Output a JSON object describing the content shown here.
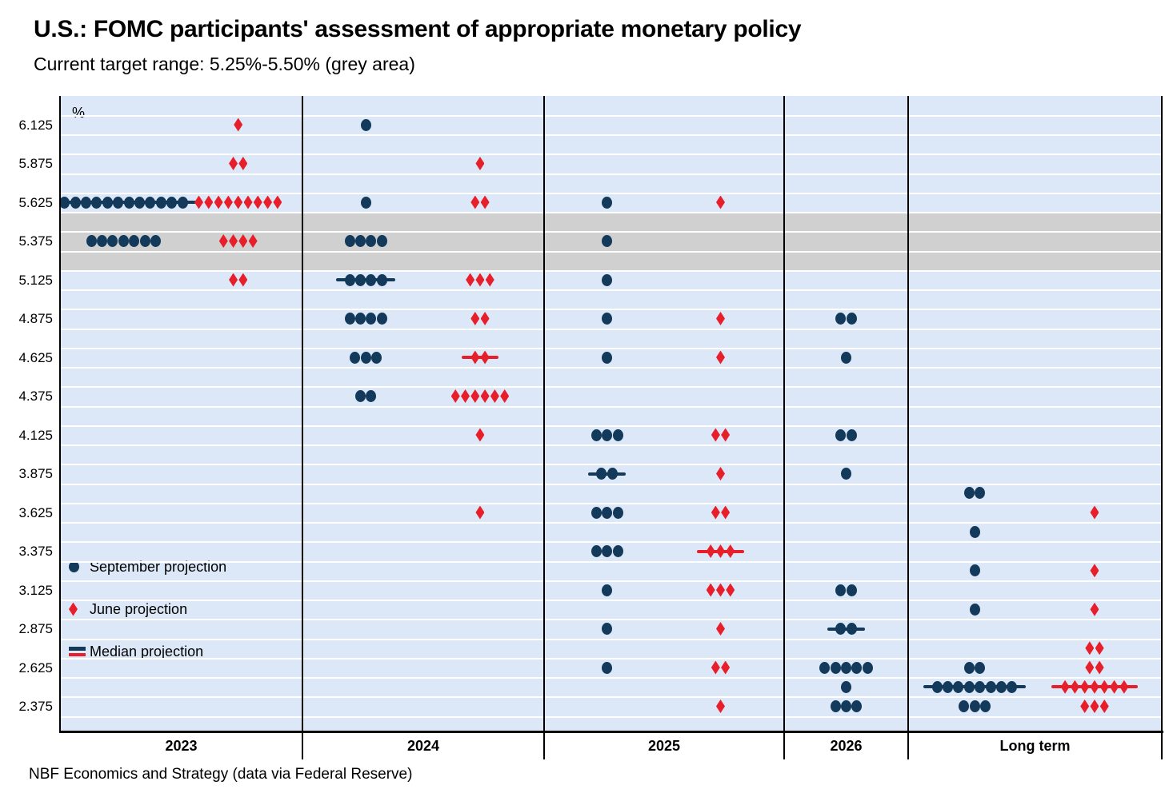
{
  "title": "U.S.: FOMC participants' assessment of appropriate monetary policy",
  "subtitle": "Current target range: 5.25%-5.50% (grey area)",
  "footer": "NBF Economics and Strategy (data via Federal Reserve)",
  "legend": [
    {
      "label": "September projection",
      "marker": "navy-dot"
    },
    {
      "label": "June projection",
      "marker": "red-diamond"
    },
    {
      "label": "Median projection",
      "marker": "stacked-lines"
    }
  ],
  "colors": {
    "september": "#13395b",
    "june": "#e71f2b",
    "plot_background": "#dce8f7",
    "target_range_band": "#d0d0d0",
    "gridline": "#ffffff"
  },
  "chart_data": {
    "type": "scatter",
    "subtype": "fomc-dot-plot",
    "unit_label": "%",
    "y_ticks": [
      "6.125",
      "5.875",
      "5.625",
      "5.375",
      "5.125",
      "4.875",
      "4.625",
      "4.375",
      "4.125",
      "3.875",
      "3.625",
      "3.375",
      "3.125",
      "2.875",
      "2.625",
      "2.375"
    ],
    "y_range_drawn": [
      2.3125,
      6.1875
    ],
    "grid_step": 0.125,
    "target_range": {
      "low": 5.25,
      "high": 5.5,
      "note": "grey area"
    },
    "columns": [
      {
        "label": "2023",
        "september": {
          "median": 5.625,
          "median_line_visible": true,
          "dots": [
            {
              "rate": 5.625,
              "count": 12
            },
            {
              "rate": 5.375,
              "count": 7
            }
          ]
        },
        "june": {
          "median": 5.625,
          "median_line_visible": false,
          "dots": [
            {
              "rate": 6.125,
              "count": 1
            },
            {
              "rate": 5.875,
              "count": 2
            },
            {
              "rate": 5.625,
              "count": 9
            },
            {
              "rate": 5.375,
              "count": 4
            },
            {
              "rate": 5.125,
              "count": 2
            }
          ]
        }
      },
      {
        "label": "2024",
        "september": {
          "median": 5.125,
          "median_line_visible": true,
          "dots": [
            {
              "rate": 6.125,
              "count": 1
            },
            {
              "rate": 5.625,
              "count": 1
            },
            {
              "rate": 5.375,
              "count": 4
            },
            {
              "rate": 5.125,
              "count": 4
            },
            {
              "rate": 4.875,
              "count": 4
            },
            {
              "rate": 4.625,
              "count": 3
            },
            {
              "rate": 4.375,
              "count": 2
            }
          ]
        },
        "june": {
          "median": 4.625,
          "median_line_visible": true,
          "dots": [
            {
              "rate": 5.875,
              "count": 1
            },
            {
              "rate": 5.625,
              "count": 2
            },
            {
              "rate": 5.125,
              "count": 3
            },
            {
              "rate": 4.875,
              "count": 2
            },
            {
              "rate": 4.625,
              "count": 2
            },
            {
              "rate": 4.375,
              "count": 6
            },
            {
              "rate": 4.125,
              "count": 1
            },
            {
              "rate": 3.625,
              "count": 1
            }
          ]
        }
      },
      {
        "label": "2025",
        "september": {
          "median": 3.875,
          "median_line_visible": true,
          "dots": [
            {
              "rate": 5.625,
              "count": 1
            },
            {
              "rate": 5.375,
              "count": 1
            },
            {
              "rate": 5.125,
              "count": 1
            },
            {
              "rate": 4.875,
              "count": 1
            },
            {
              "rate": 4.625,
              "count": 1
            },
            {
              "rate": 4.125,
              "count": 3
            },
            {
              "rate": 3.875,
              "count": 2
            },
            {
              "rate": 3.625,
              "count": 3
            },
            {
              "rate": 3.375,
              "count": 3
            },
            {
              "rate": 3.125,
              "count": 1
            },
            {
              "rate": 2.875,
              "count": 1
            },
            {
              "rate": 2.625,
              "count": 1
            }
          ]
        },
        "june": {
          "median": 3.375,
          "median_line_visible": true,
          "dots": [
            {
              "rate": 5.625,
              "count": 1
            },
            {
              "rate": 4.875,
              "count": 1
            },
            {
              "rate": 4.625,
              "count": 1
            },
            {
              "rate": 4.125,
              "count": 2
            },
            {
              "rate": 3.875,
              "count": 1
            },
            {
              "rate": 3.625,
              "count": 2
            },
            {
              "rate": 3.375,
              "count": 3
            },
            {
              "rate": 3.125,
              "count": 3
            },
            {
              "rate": 2.875,
              "count": 1
            },
            {
              "rate": 2.625,
              "count": 2
            },
            {
              "rate": 2.375,
              "count": 1
            }
          ]
        }
      },
      {
        "label": "2026",
        "september": {
          "median": 2.875,
          "median_line_visible": true,
          "dots": [
            {
              "rate": 4.875,
              "count": 2
            },
            {
              "rate": 4.625,
              "count": 1
            },
            {
              "rate": 4.125,
              "count": 2
            },
            {
              "rate": 3.875,
              "count": 1
            },
            {
              "rate": 3.125,
              "count": 2
            },
            {
              "rate": 2.875,
              "count": 2
            },
            {
              "rate": 2.625,
              "count": 5
            },
            {
              "rate": 2.5,
              "count": 1
            },
            {
              "rate": 2.375,
              "count": 3
            }
          ]
        },
        "june": {
          "median": null,
          "median_line_visible": false,
          "dots": []
        }
      },
      {
        "label": "Long term",
        "september": {
          "median": 2.5,
          "median_line_visible": true,
          "dots": [
            {
              "rate": 3.75,
              "count": 2
            },
            {
              "rate": 3.5,
              "count": 1
            },
            {
              "rate": 3.25,
              "count": 1
            },
            {
              "rate": 3.0,
              "count": 1
            },
            {
              "rate": 2.625,
              "count": 2
            },
            {
              "rate": 2.5,
              "count": 8
            },
            {
              "rate": 2.375,
              "count": 3
            }
          ]
        },
        "june": {
          "median": 2.5,
          "median_line_visible": true,
          "dots": [
            {
              "rate": 3.625,
              "count": 1
            },
            {
              "rate": 3.25,
              "count": 1
            },
            {
              "rate": 3.0,
              "count": 1
            },
            {
              "rate": 2.75,
              "count": 2
            },
            {
              "rate": 2.625,
              "count": 2
            },
            {
              "rate": 2.5,
              "count": 7
            },
            {
              "rate": 2.375,
              "count": 3
            }
          ]
        }
      }
    ]
  }
}
